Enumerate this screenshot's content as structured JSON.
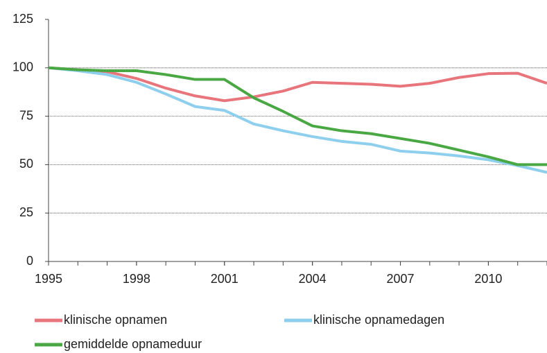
{
  "chart_data": {
    "type": "line",
    "x": [
      1995,
      1996,
      1997,
      1998,
      1999,
      2000,
      2001,
      2002,
      2003,
      2004,
      2005,
      2006,
      2007,
      2008,
      2009,
      2010,
      2011,
      2012
    ],
    "series": [
      {
        "name": "klinische opnamen",
        "color": "#e8747c",
        "values": [
          100,
          99,
          98,
          94.5,
          89.5,
          85.5,
          83,
          85,
          88,
          92.5,
          92,
          91.5,
          90.5,
          92,
          95,
          97,
          97.2,
          92
        ]
      },
      {
        "name": "klinische opnamedagen",
        "color": "#8ecfee",
        "values": [
          100,
          98.5,
          96.5,
          92.5,
          86.5,
          80,
          78,
          71,
          67.5,
          64.5,
          62,
          60.5,
          57,
          56,
          54.5,
          52.5,
          49.5,
          46
        ]
      },
      {
        "name": "gemiddelde opnameduur",
        "color": "#4aa844",
        "values": [
          100,
          99,
          98.5,
          98.5,
          96.5,
          94,
          94,
          84.5,
          77.5,
          70,
          67.5,
          66,
          63.5,
          61,
          57.5,
          54,
          50,
          50
        ]
      }
    ],
    "xlim": [
      1995,
      2012
    ],
    "xticks": [
      1995,
      1998,
      2001,
      2004,
      2007,
      2010
    ],
    "ylim": [
      0,
      125
    ],
    "yticks": [
      0,
      25,
      50,
      75,
      100,
      125
    ],
    "grid": true
  }
}
